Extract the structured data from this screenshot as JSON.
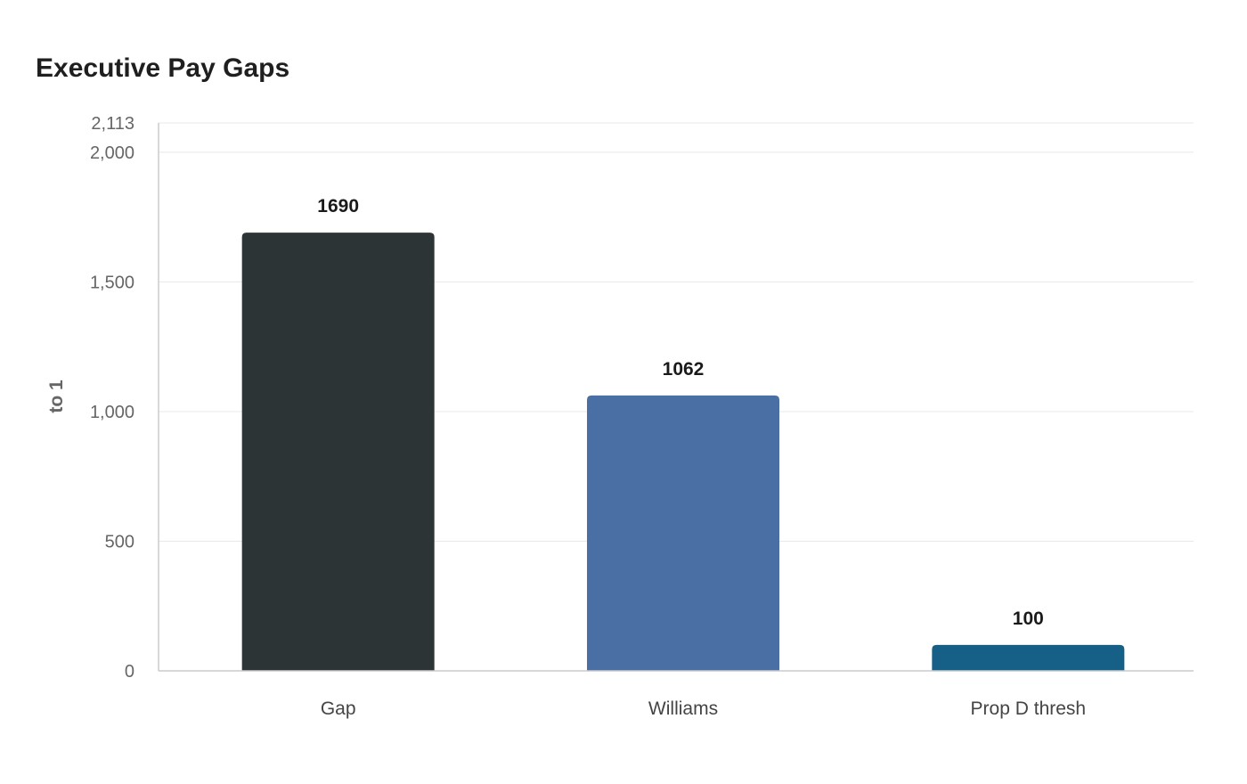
{
  "chart_data": {
    "type": "bar",
    "title": "Executive Pay Gaps",
    "xlabel": "",
    "ylabel": "to 1",
    "categories": [
      "Gap",
      "Williams",
      "Prop D thresh"
    ],
    "values": [
      1690,
      1062,
      100
    ],
    "data_labels": [
      "1690",
      "1062",
      "100"
    ],
    "bar_colors": [
      "#2d3436",
      "#4a6fa5",
      "#166088"
    ],
    "ylim": [
      0,
      2113
    ],
    "y_ticks": [
      {
        "value": 0,
        "label": "0"
      },
      {
        "value": 500,
        "label": "500"
      },
      {
        "value": 1000,
        "label": "1,000"
      },
      {
        "value": 1500,
        "label": "1,500"
      },
      {
        "value": 2000,
        "label": "2,000"
      },
      {
        "value": 2113,
        "label": "2,113"
      }
    ],
    "grid": true,
    "legend": "none"
  }
}
